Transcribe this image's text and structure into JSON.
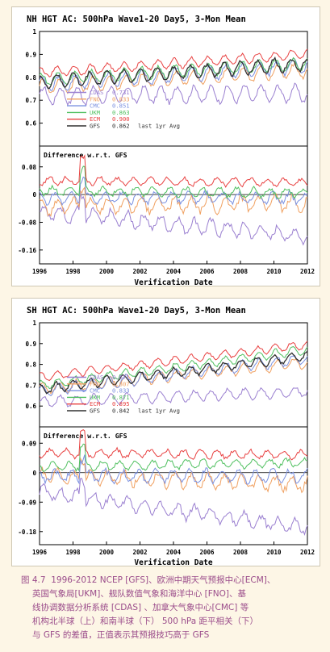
{
  "chart_data": [
    {
      "type": "line",
      "title": "NH HGT AC: 500hPa Wave1-20 Day5, 3-Mon Mean",
      "xlabel": "Verification Date",
      "x_ticks": [
        "1996",
        "1998",
        "2000",
        "2002",
        "2004",
        "2006",
        "2008",
        "2010",
        "2012"
      ],
      "xlim": [
        1996,
        2012
      ],
      "top": {
        "ylim": [
          0.5,
          1.0
        ],
        "y_ticks": [
          "0.6",
          "0.7",
          "0.8",
          "0.9",
          "1"
        ],
        "legend": [
          {
            "name": "CDAS",
            "value": "0.731",
            "color": "#9a7fd0"
          },
          {
            "name": "FNO",
            "value": "0.833",
            "color": "#f0a060"
          },
          {
            "name": "CMC",
            "value": "0.851",
            "color": "#7a90e0"
          },
          {
            "name": "UKM",
            "value": "0.863",
            "color": "#50c060"
          },
          {
            "name": "ECM",
            "value": "0.900",
            "color": "#e84040"
          },
          {
            "name": "GFS",
            "value": "0.862",
            "color": "#303030"
          }
        ],
        "legend_note": "last 1yr Avg",
        "series": [
          {
            "name": "CDAS",
            "start": 0.72,
            "end": 0.73,
            "amp": 0.035
          },
          {
            "name": "FNO",
            "start": 0.76,
            "end": 0.83,
            "amp": 0.03
          },
          {
            "name": "CMC",
            "start": 0.77,
            "end": 0.85,
            "amp": 0.03
          },
          {
            "name": "UKM",
            "start": 0.79,
            "end": 0.86,
            "amp": 0.025
          },
          {
            "name": "ECM",
            "start": 0.82,
            "end": 0.9,
            "amp": 0.02
          },
          {
            "name": "GFS",
            "start": 0.78,
            "end": 0.86,
            "amp": 0.028
          }
        ]
      },
      "bottom": {
        "label": "Difference w.r.t. GFS",
        "ylim": [
          -0.2,
          0.14
        ],
        "y_ticks": [
          "-0.16",
          "-0.08",
          "0",
          "0.08"
        ],
        "y_tick_values": [
          -0.16,
          -0.08,
          0,
          0.08
        ],
        "series": [
          {
            "name": "CDAS",
            "start": -0.05,
            "end": -0.12,
            "amp": 0.02
          },
          {
            "name": "FNO",
            "start": -0.035,
            "end": -0.025,
            "amp": 0.02
          },
          {
            "name": "CMC",
            "start": -0.01,
            "end": -0.01,
            "amp": 0.015
          },
          {
            "name": "UKM",
            "start": 0.01,
            "end": 0.005,
            "amp": 0.012
          },
          {
            "name": "ECM",
            "start": 0.04,
            "end": 0.035,
            "amp": 0.01
          }
        ]
      }
    },
    {
      "type": "line",
      "title": "SH HGT AC: 500hPa Wave1-20 Day5, 3-Mon Mean",
      "xlabel": "Verification Date",
      "x_ticks": [
        "1996",
        "1998",
        "2000",
        "2002",
        "2004",
        "2006",
        "2008",
        "2010",
        "2012"
      ],
      "xlim": [
        1996,
        2012
      ],
      "top": {
        "ylim": [
          0.5,
          1.0
        ],
        "y_ticks": [
          "0.6",
          "0.7",
          "0.8",
          "0.9",
          "1"
        ],
        "legend": [
          {
            "name": "CDAS",
            "value": "0.671",
            "color": "#9a7fd0"
          },
          {
            "name": "FNO",
            "value": "0.807",
            "color": "#f0a060"
          },
          {
            "name": "CMC",
            "value": "0.833",
            "color": "#7a90e0"
          },
          {
            "name": "UKM",
            "value": "0.871",
            "color": "#50c060"
          },
          {
            "name": "ECM",
            "value": "0.895",
            "color": "#e84040"
          },
          {
            "name": "GFS",
            "value": "0.842",
            "color": "#303030"
          }
        ],
        "legend_note": "last 1yr Avg",
        "series": [
          {
            "name": "CDAS",
            "start": 0.62,
            "end": 0.67,
            "amp": 0.025
          },
          {
            "name": "FNO",
            "start": 0.68,
            "end": 0.81,
            "amp": 0.025
          },
          {
            "name": "CMC",
            "start": 0.67,
            "end": 0.83,
            "amp": 0.025
          },
          {
            "name": "UKM",
            "start": 0.7,
            "end": 0.87,
            "amp": 0.02
          },
          {
            "name": "ECM",
            "start": 0.74,
            "end": 0.895,
            "amp": 0.018
          },
          {
            "name": "GFS",
            "start": 0.68,
            "end": 0.84,
            "amp": 0.022
          }
        ]
      },
      "bottom": {
        "label": "Difference w.r.t. GFS",
        "ylim": [
          -0.22,
          0.14
        ],
        "y_ticks": [
          "-0.18",
          "-0.09",
          "0",
          "0.09"
        ],
        "y_tick_values": [
          -0.18,
          -0.09,
          0,
          0.09
        ],
        "series": [
          {
            "name": "CDAS",
            "start": -0.06,
            "end": -0.17,
            "amp": 0.02
          },
          {
            "name": "FNO",
            "start": -0.01,
            "end": -0.035,
            "amp": 0.02
          },
          {
            "name": "CMC",
            "start": -0.01,
            "end": -0.01,
            "amp": 0.018
          },
          {
            "name": "UKM",
            "start": 0.02,
            "end": 0.03,
            "amp": 0.012
          },
          {
            "name": "ECM",
            "start": 0.06,
            "end": 0.055,
            "amp": 0.012
          }
        ]
      }
    }
  ],
  "caption": {
    "figure_number": "图 4.7",
    "lines": [
      "1996-2012 NCEP [GFS]、欧洲中期天气预报中心[ECM]、",
      "英国气象局[UKM]、舰队数值气象和海洋中心 [FNO]、基",
      "线协调数据分析系统 [CDAS] 、加拿大气象中心[CMC] 等",
      "机构北半球（上）和南半球（下） 500 hPa 距平相关（下）",
      "与 GFS 的差值，正值表示其预报技巧高于 GFS"
    ]
  }
}
